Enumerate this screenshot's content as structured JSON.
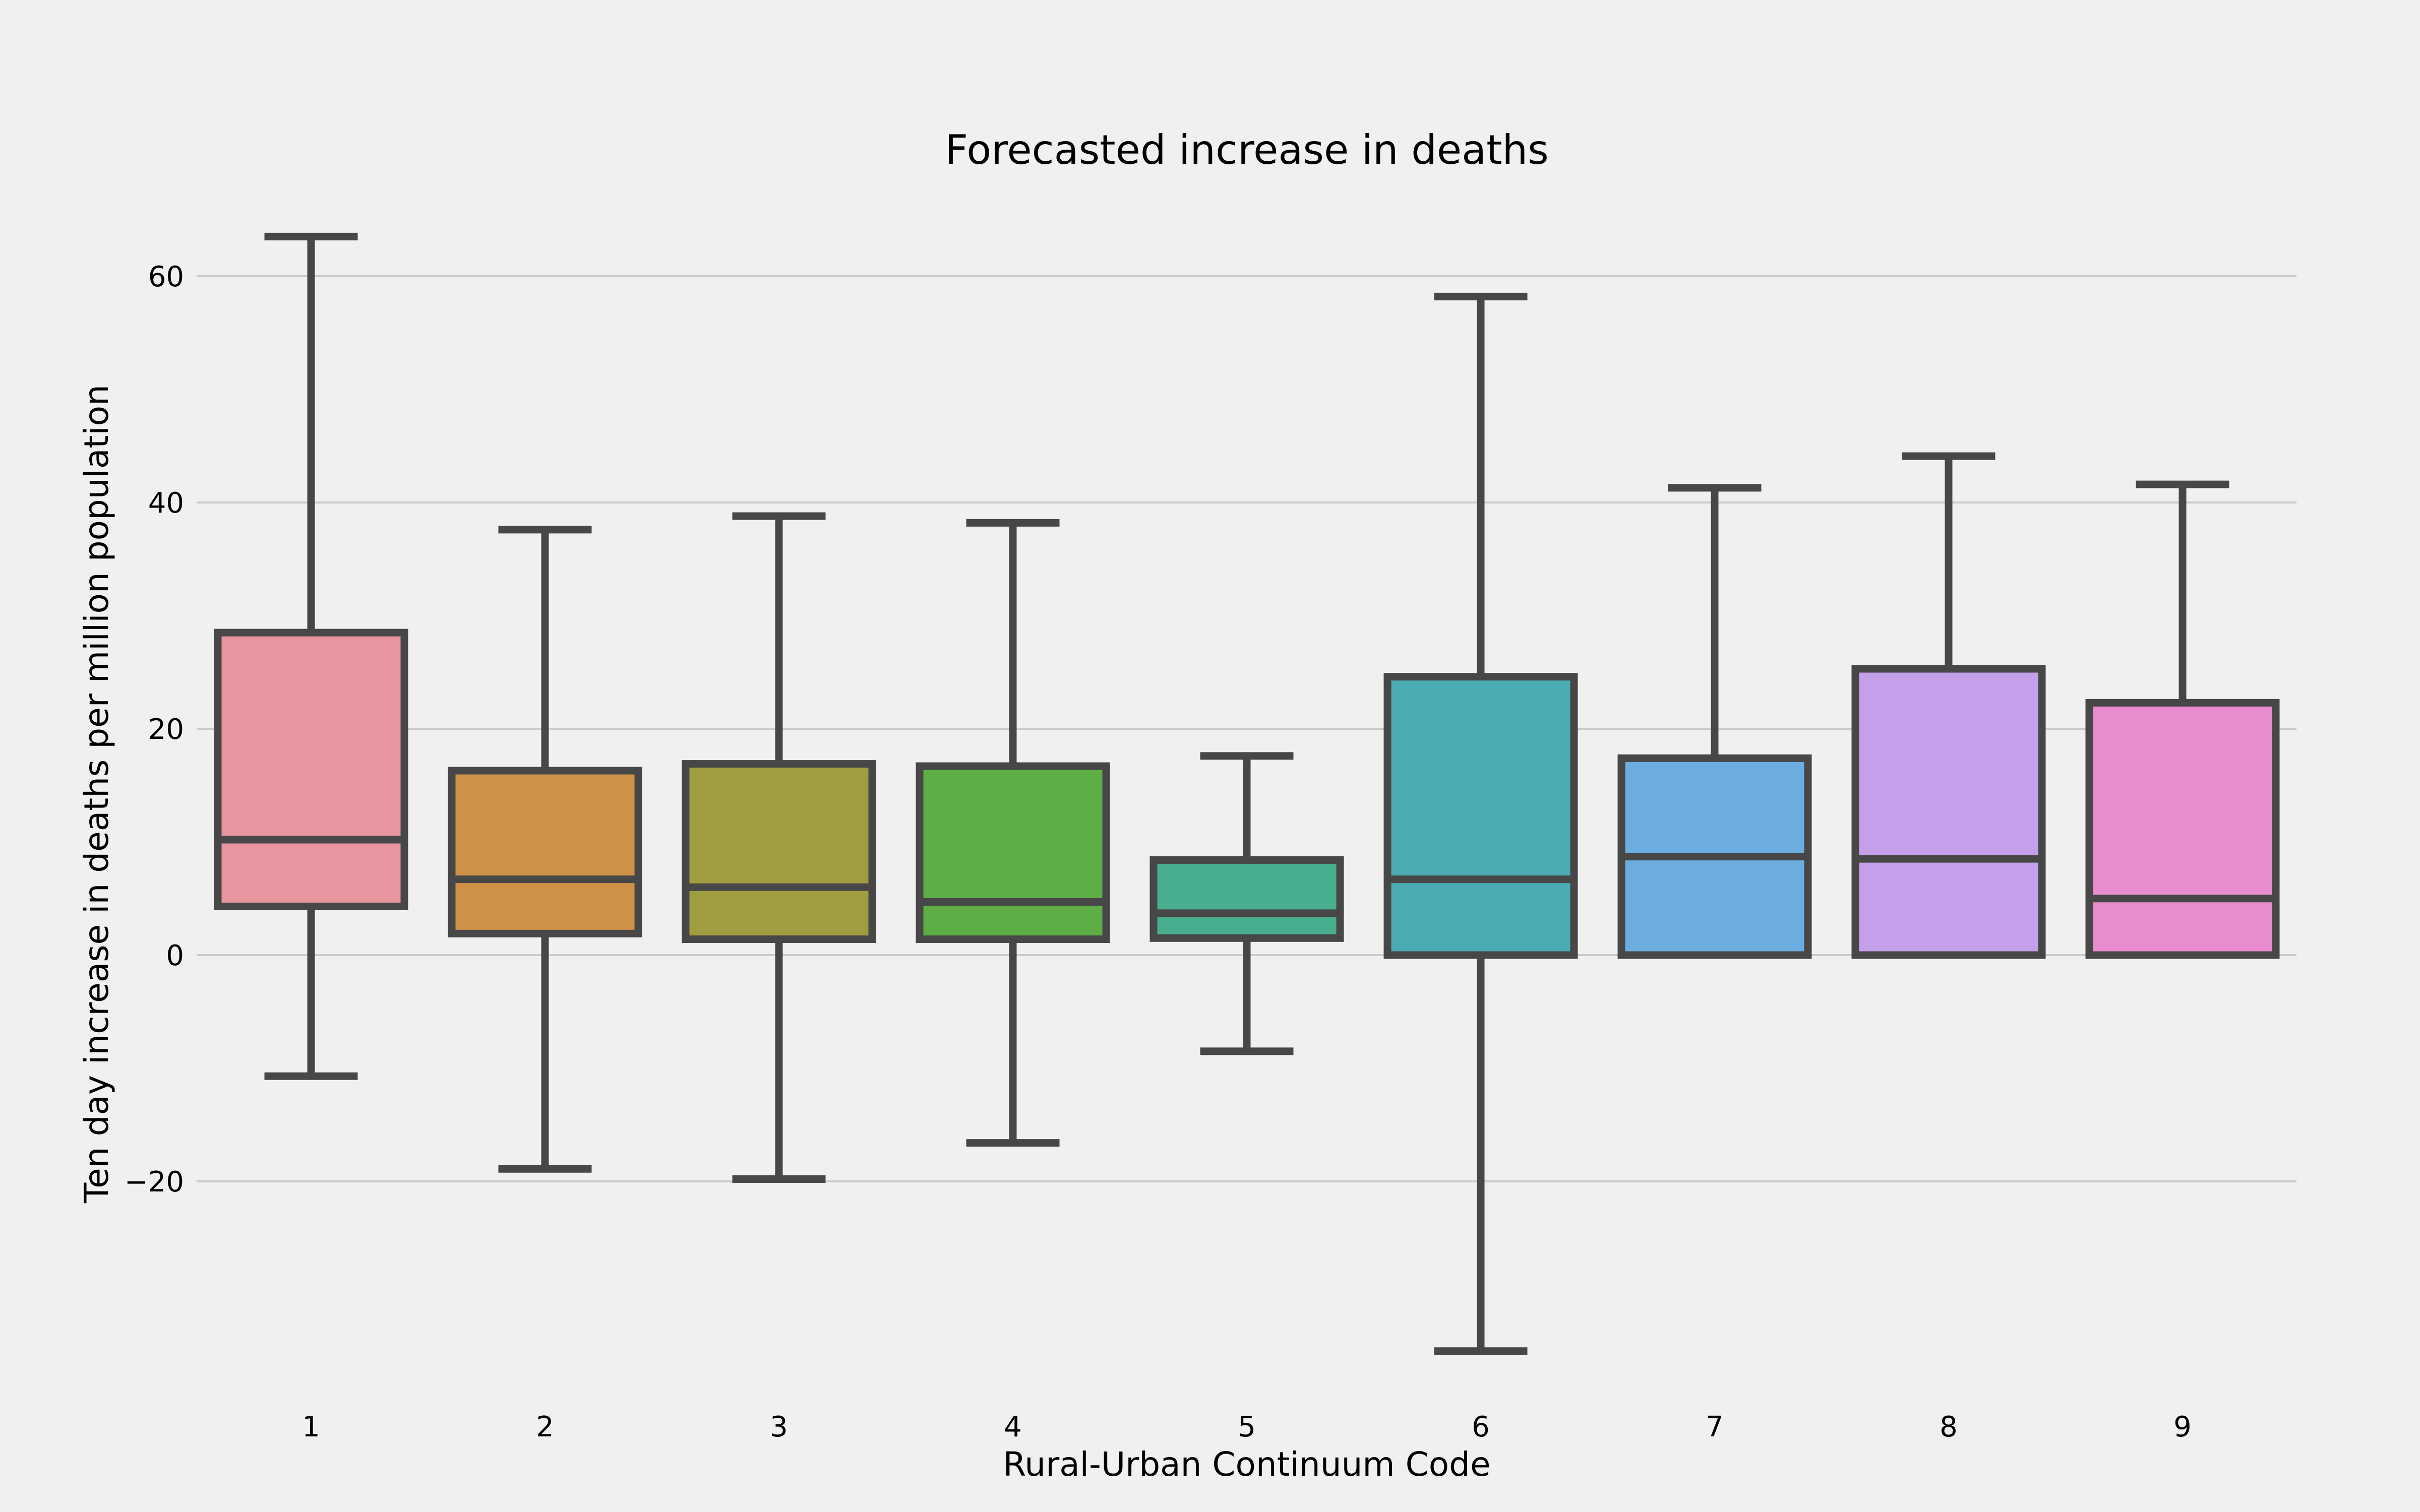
{
  "chart_data": {
    "type": "box",
    "title": "Forecasted increase in deaths",
    "xlabel": "Rural-Urban Continuum Code",
    "ylabel": "Ten day increase in deaths per million population",
    "ylim": [
      -38.5,
      68
    ],
    "yticks": [
      {
        "value": -20,
        "label": "−20"
      },
      {
        "value": 0,
        "label": "0"
      },
      {
        "value": 20,
        "label": "20"
      },
      {
        "value": 40,
        "label": "40"
      },
      {
        "value": 60,
        "label": "60"
      }
    ],
    "grid": "horizontal",
    "categories": [
      "1",
      "2",
      "3",
      "4",
      "5",
      "6",
      "7",
      "8",
      "9"
    ],
    "boxes": [
      {
        "category": "1",
        "whisker_low": -10.7,
        "q1": 4.3,
        "median": 10.2,
        "q3": 28.5,
        "whisker_high": 63.5,
        "color": "#e8959f"
      },
      {
        "category": "2",
        "whisker_low": -18.9,
        "q1": 1.9,
        "median": 6.7,
        "q3": 16.3,
        "whisker_high": 37.6,
        "color": "#cf9147"
      },
      {
        "category": "3",
        "whisker_low": -19.8,
        "q1": 1.4,
        "median": 6.0,
        "q3": 16.9,
        "whisker_high": 38.8,
        "color": "#a09d41"
      },
      {
        "category": "4",
        "whisker_low": -16.6,
        "q1": 1.4,
        "median": 4.7,
        "q3": 16.7,
        "whisker_high": 38.2,
        "color": "#5dae45"
      },
      {
        "category": "5",
        "whisker_low": -8.5,
        "q1": 1.5,
        "median": 3.7,
        "q3": 8.4,
        "whisker_high": 17.6,
        "color": "#49ad8f"
      },
      {
        "category": "6",
        "whisker_low": -35.0,
        "q1": 0.0,
        "median": 6.7,
        "q3": 24.6,
        "whisker_high": 58.2,
        "color": "#4aabb3"
      },
      {
        "category": "7",
        "whisker_low": 0.0,
        "q1": 0.0,
        "median": 8.7,
        "q3": 17.4,
        "whisker_high": 41.3,
        "color": "#6badde"
      },
      {
        "category": "8",
        "whisker_low": 0.0,
        "q1": 0.0,
        "median": 8.5,
        "q3": 25.3,
        "whisker_high": 44.1,
        "color": "#c49fea"
      },
      {
        "category": "9",
        "whisker_low": 0.0,
        "q1": 0.0,
        "median": 5.0,
        "q3": 22.3,
        "whisker_high": 41.6,
        "color": "#e98bcf"
      }
    ]
  }
}
